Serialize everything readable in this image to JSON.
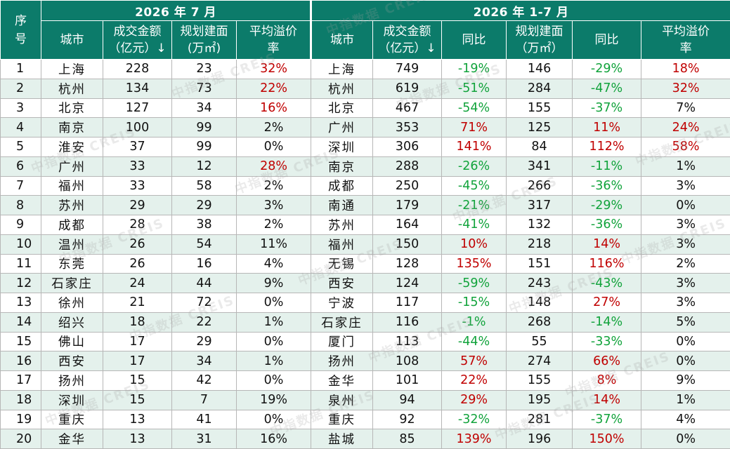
{
  "headers": {
    "seq": "序号",
    "group_left": "2026 年 7 月",
    "group_right": "2026 年 1-7 月",
    "city": "城市",
    "amount": "成交金额（亿元）↓",
    "area_left": "规划建面(万㎡)",
    "premium": "平均溢价率",
    "yoy": "同比",
    "area_right": "规划建面（万㎡）"
  },
  "watermark": "中指数据 CREIS",
  "colors": {
    "header_bg": "#0c7b6a",
    "stripe": "#e4f1ec",
    "positive": "#c00000",
    "negative": "#11a33b"
  },
  "rows": [
    {
      "seq": "1",
      "m_city": "上海",
      "m_amount": "228",
      "m_area": "23",
      "m_prem": "32%",
      "m_prem_c": "pos",
      "y_city": "上海",
      "y_amount": "749",
      "y_amount_yoy": "-19%",
      "y_amount_yoy_c": "neg",
      "y_area": "146",
      "y_area_yoy": "-29%",
      "y_area_yoy_c": "neg",
      "y_prem": "18%",
      "y_prem_c": "pos"
    },
    {
      "seq": "2",
      "m_city": "杭州",
      "m_amount": "134",
      "m_area": "73",
      "m_prem": "22%",
      "m_prem_c": "pos",
      "y_city": "杭州",
      "y_amount": "619",
      "y_amount_yoy": "-51%",
      "y_amount_yoy_c": "neg",
      "y_area": "284",
      "y_area_yoy": "-47%",
      "y_area_yoy_c": "neg",
      "y_prem": "32%",
      "y_prem_c": "pos"
    },
    {
      "seq": "3",
      "m_city": "北京",
      "m_amount": "127",
      "m_area": "34",
      "m_prem": "16%",
      "m_prem_c": "pos",
      "y_city": "北京",
      "y_amount": "467",
      "y_amount_yoy": "-54%",
      "y_amount_yoy_c": "neg",
      "y_area": "155",
      "y_area_yoy": "-37%",
      "y_area_yoy_c": "neg",
      "y_prem": "7%",
      "y_prem_c": "neu"
    },
    {
      "seq": "4",
      "m_city": "南京",
      "m_amount": "100",
      "m_area": "99",
      "m_prem": "2%",
      "m_prem_c": "neu",
      "y_city": "广州",
      "y_amount": "353",
      "y_amount_yoy": "71%",
      "y_amount_yoy_c": "pos",
      "y_area": "125",
      "y_area_yoy": "11%",
      "y_area_yoy_c": "pos",
      "y_prem": "24%",
      "y_prem_c": "pos"
    },
    {
      "seq": "5",
      "m_city": "淮安",
      "m_amount": "37",
      "m_area": "99",
      "m_prem": "0%",
      "m_prem_c": "neu",
      "y_city": "深圳",
      "y_amount": "306",
      "y_amount_yoy": "141%",
      "y_amount_yoy_c": "pos",
      "y_area": "84",
      "y_area_yoy": "112%",
      "y_area_yoy_c": "pos",
      "y_prem": "58%",
      "y_prem_c": "pos"
    },
    {
      "seq": "6",
      "m_city": "广州",
      "m_amount": "33",
      "m_area": "12",
      "m_prem": "28%",
      "m_prem_c": "pos",
      "y_city": "南京",
      "y_amount": "288",
      "y_amount_yoy": "-26%",
      "y_amount_yoy_c": "neg",
      "y_area": "341",
      "y_area_yoy": "-11%",
      "y_area_yoy_c": "neg",
      "y_prem": "1%",
      "y_prem_c": "neu"
    },
    {
      "seq": "7",
      "m_city": "福州",
      "m_amount": "33",
      "m_area": "58",
      "m_prem": "2%",
      "m_prem_c": "neu",
      "y_city": "成都",
      "y_amount": "250",
      "y_amount_yoy": "-45%",
      "y_amount_yoy_c": "neg",
      "y_area": "266",
      "y_area_yoy": "-36%",
      "y_area_yoy_c": "neg",
      "y_prem": "3%",
      "y_prem_c": "neu"
    },
    {
      "seq": "8",
      "m_city": "苏州",
      "m_amount": "29",
      "m_area": "29",
      "m_prem": "3%",
      "m_prem_c": "neu",
      "y_city": "南通",
      "y_amount": "179",
      "y_amount_yoy": "-21%",
      "y_amount_yoy_c": "neg",
      "y_area": "317",
      "y_area_yoy": "-29%",
      "y_area_yoy_c": "neg",
      "y_prem": "0%",
      "y_prem_c": "neu"
    },
    {
      "seq": "9",
      "m_city": "成都",
      "m_amount": "28",
      "m_area": "38",
      "m_prem": "2%",
      "m_prem_c": "neu",
      "y_city": "苏州",
      "y_amount": "164",
      "y_amount_yoy": "-41%",
      "y_amount_yoy_c": "neg",
      "y_area": "132",
      "y_area_yoy": "-36%",
      "y_area_yoy_c": "neg",
      "y_prem": "3%",
      "y_prem_c": "neu"
    },
    {
      "seq": "10",
      "m_city": "温州",
      "m_amount": "26",
      "m_area": "54",
      "m_prem": "11%",
      "m_prem_c": "neu",
      "y_city": "福州",
      "y_amount": "150",
      "y_amount_yoy": "10%",
      "y_amount_yoy_c": "pos",
      "y_area": "218",
      "y_area_yoy": "14%",
      "y_area_yoy_c": "pos",
      "y_prem": "3%",
      "y_prem_c": "neu"
    },
    {
      "seq": "11",
      "m_city": "东莞",
      "m_amount": "26",
      "m_area": "16",
      "m_prem": "4%",
      "m_prem_c": "neu",
      "y_city": "无锡",
      "y_amount": "128",
      "y_amount_yoy": "135%",
      "y_amount_yoy_c": "pos",
      "y_area": "151",
      "y_area_yoy": "116%",
      "y_area_yoy_c": "pos",
      "y_prem": "2%",
      "y_prem_c": "neu"
    },
    {
      "seq": "12",
      "m_city": "石家庄",
      "m_amount": "24",
      "m_area": "44",
      "m_prem": "9%",
      "m_prem_c": "neu",
      "y_city": "西安",
      "y_amount": "124",
      "y_amount_yoy": "-59%",
      "y_amount_yoy_c": "neg",
      "y_area": "243",
      "y_area_yoy": "-43%",
      "y_area_yoy_c": "neg",
      "y_prem": "3%",
      "y_prem_c": "neu"
    },
    {
      "seq": "13",
      "m_city": "徐州",
      "m_amount": "21",
      "m_area": "72",
      "m_prem": "0%",
      "m_prem_c": "neu",
      "y_city": "宁波",
      "y_amount": "117",
      "y_amount_yoy": "-15%",
      "y_amount_yoy_c": "neg",
      "y_area": "148",
      "y_area_yoy": "27%",
      "y_area_yoy_c": "pos",
      "y_prem": "3%",
      "y_prem_c": "neu"
    },
    {
      "seq": "14",
      "m_city": "绍兴",
      "m_amount": "18",
      "m_area": "22",
      "m_prem": "1%",
      "m_prem_c": "neu",
      "y_city": "石家庄",
      "y_amount": "116",
      "y_amount_yoy": "-1%",
      "y_amount_yoy_c": "neg",
      "y_area": "268",
      "y_area_yoy": "-14%",
      "y_area_yoy_c": "neg",
      "y_prem": "5%",
      "y_prem_c": "neu"
    },
    {
      "seq": "15",
      "m_city": "佛山",
      "m_amount": "17",
      "m_area": "29",
      "m_prem": "0%",
      "m_prem_c": "neu",
      "y_city": "厦门",
      "y_amount": "113",
      "y_amount_yoy": "-44%",
      "y_amount_yoy_c": "neg",
      "y_area": "55",
      "y_area_yoy": "-33%",
      "y_area_yoy_c": "neg",
      "y_prem": "0%",
      "y_prem_c": "neu"
    },
    {
      "seq": "16",
      "m_city": "西安",
      "m_amount": "17",
      "m_area": "34",
      "m_prem": "1%",
      "m_prem_c": "neu",
      "y_city": "扬州",
      "y_amount": "108",
      "y_amount_yoy": "57%",
      "y_amount_yoy_c": "pos",
      "y_area": "274",
      "y_area_yoy": "66%",
      "y_area_yoy_c": "pos",
      "y_prem": "0%",
      "y_prem_c": "neu"
    },
    {
      "seq": "17",
      "m_city": "扬州",
      "m_amount": "15",
      "m_area": "42",
      "m_prem": "0%",
      "m_prem_c": "neu",
      "y_city": "金华",
      "y_amount": "101",
      "y_amount_yoy": "22%",
      "y_amount_yoy_c": "pos",
      "y_area": "155",
      "y_area_yoy": "8%",
      "y_area_yoy_c": "pos",
      "y_prem": "9%",
      "y_prem_c": "neu"
    },
    {
      "seq": "18",
      "m_city": "深圳",
      "m_amount": "15",
      "m_area": "7",
      "m_prem": "19%",
      "m_prem_c": "neu",
      "y_city": "泉州",
      "y_amount": "94",
      "y_amount_yoy": "29%",
      "y_amount_yoy_c": "pos",
      "y_area": "195",
      "y_area_yoy": "14%",
      "y_area_yoy_c": "pos",
      "y_prem": "1%",
      "y_prem_c": "neu"
    },
    {
      "seq": "19",
      "m_city": "重庆",
      "m_amount": "13",
      "m_area": "41",
      "m_prem": "0%",
      "m_prem_c": "neu",
      "y_city": "重庆",
      "y_amount": "92",
      "y_amount_yoy": "-32%",
      "y_amount_yoy_c": "neg",
      "y_area": "281",
      "y_area_yoy": "-37%",
      "y_area_yoy_c": "neg",
      "y_prem": "4%",
      "y_prem_c": "neu"
    },
    {
      "seq": "20",
      "m_city": "金华",
      "m_amount": "13",
      "m_area": "31",
      "m_prem": "16%",
      "m_prem_c": "neu",
      "y_city": "盐城",
      "y_amount": "85",
      "y_amount_yoy": "139%",
      "y_amount_yoy_c": "pos",
      "y_area": "196",
      "y_area_yoy": "150%",
      "y_area_yoy_c": "pos",
      "y_prem": "0%",
      "y_prem_c": "neu"
    }
  ]
}
